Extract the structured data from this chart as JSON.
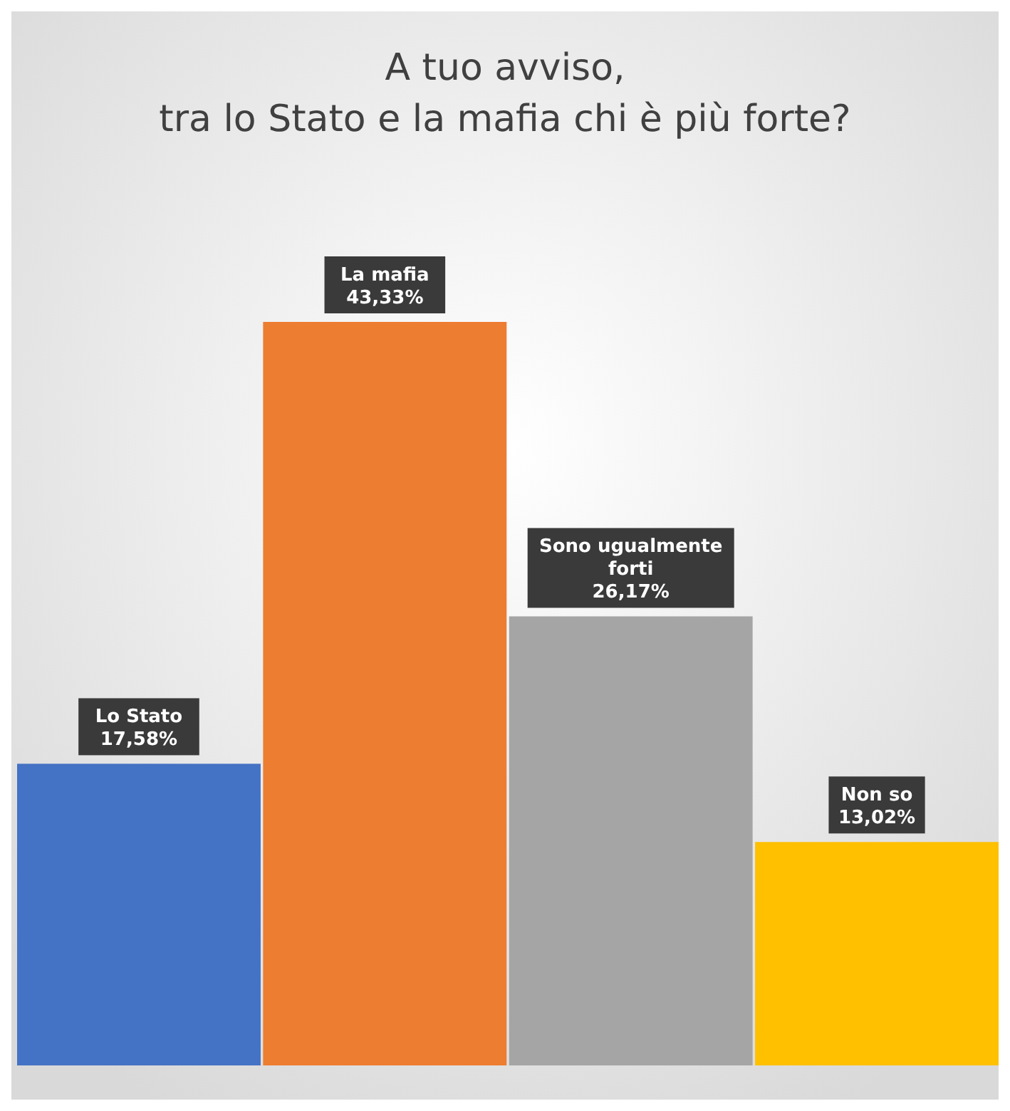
{
  "chart_data": {
    "type": "bar",
    "title": "A tuo avviso,\ntra lo Stato e la mafia chi è più forte?",
    "categories": [
      "Lo Stato",
      "La mafia",
      "Sono ugualmente forti",
      "Non so"
    ],
    "values": [
      17.58,
      43.33,
      26.17,
      13.02
    ],
    "colors": [
      "#4472c4",
      "#ed7d31",
      "#a5a5a5",
      "#ffc000"
    ],
    "value_labels": [
      "17,58%",
      "43,33%",
      "26,17%",
      "13,02%"
    ]
  }
}
